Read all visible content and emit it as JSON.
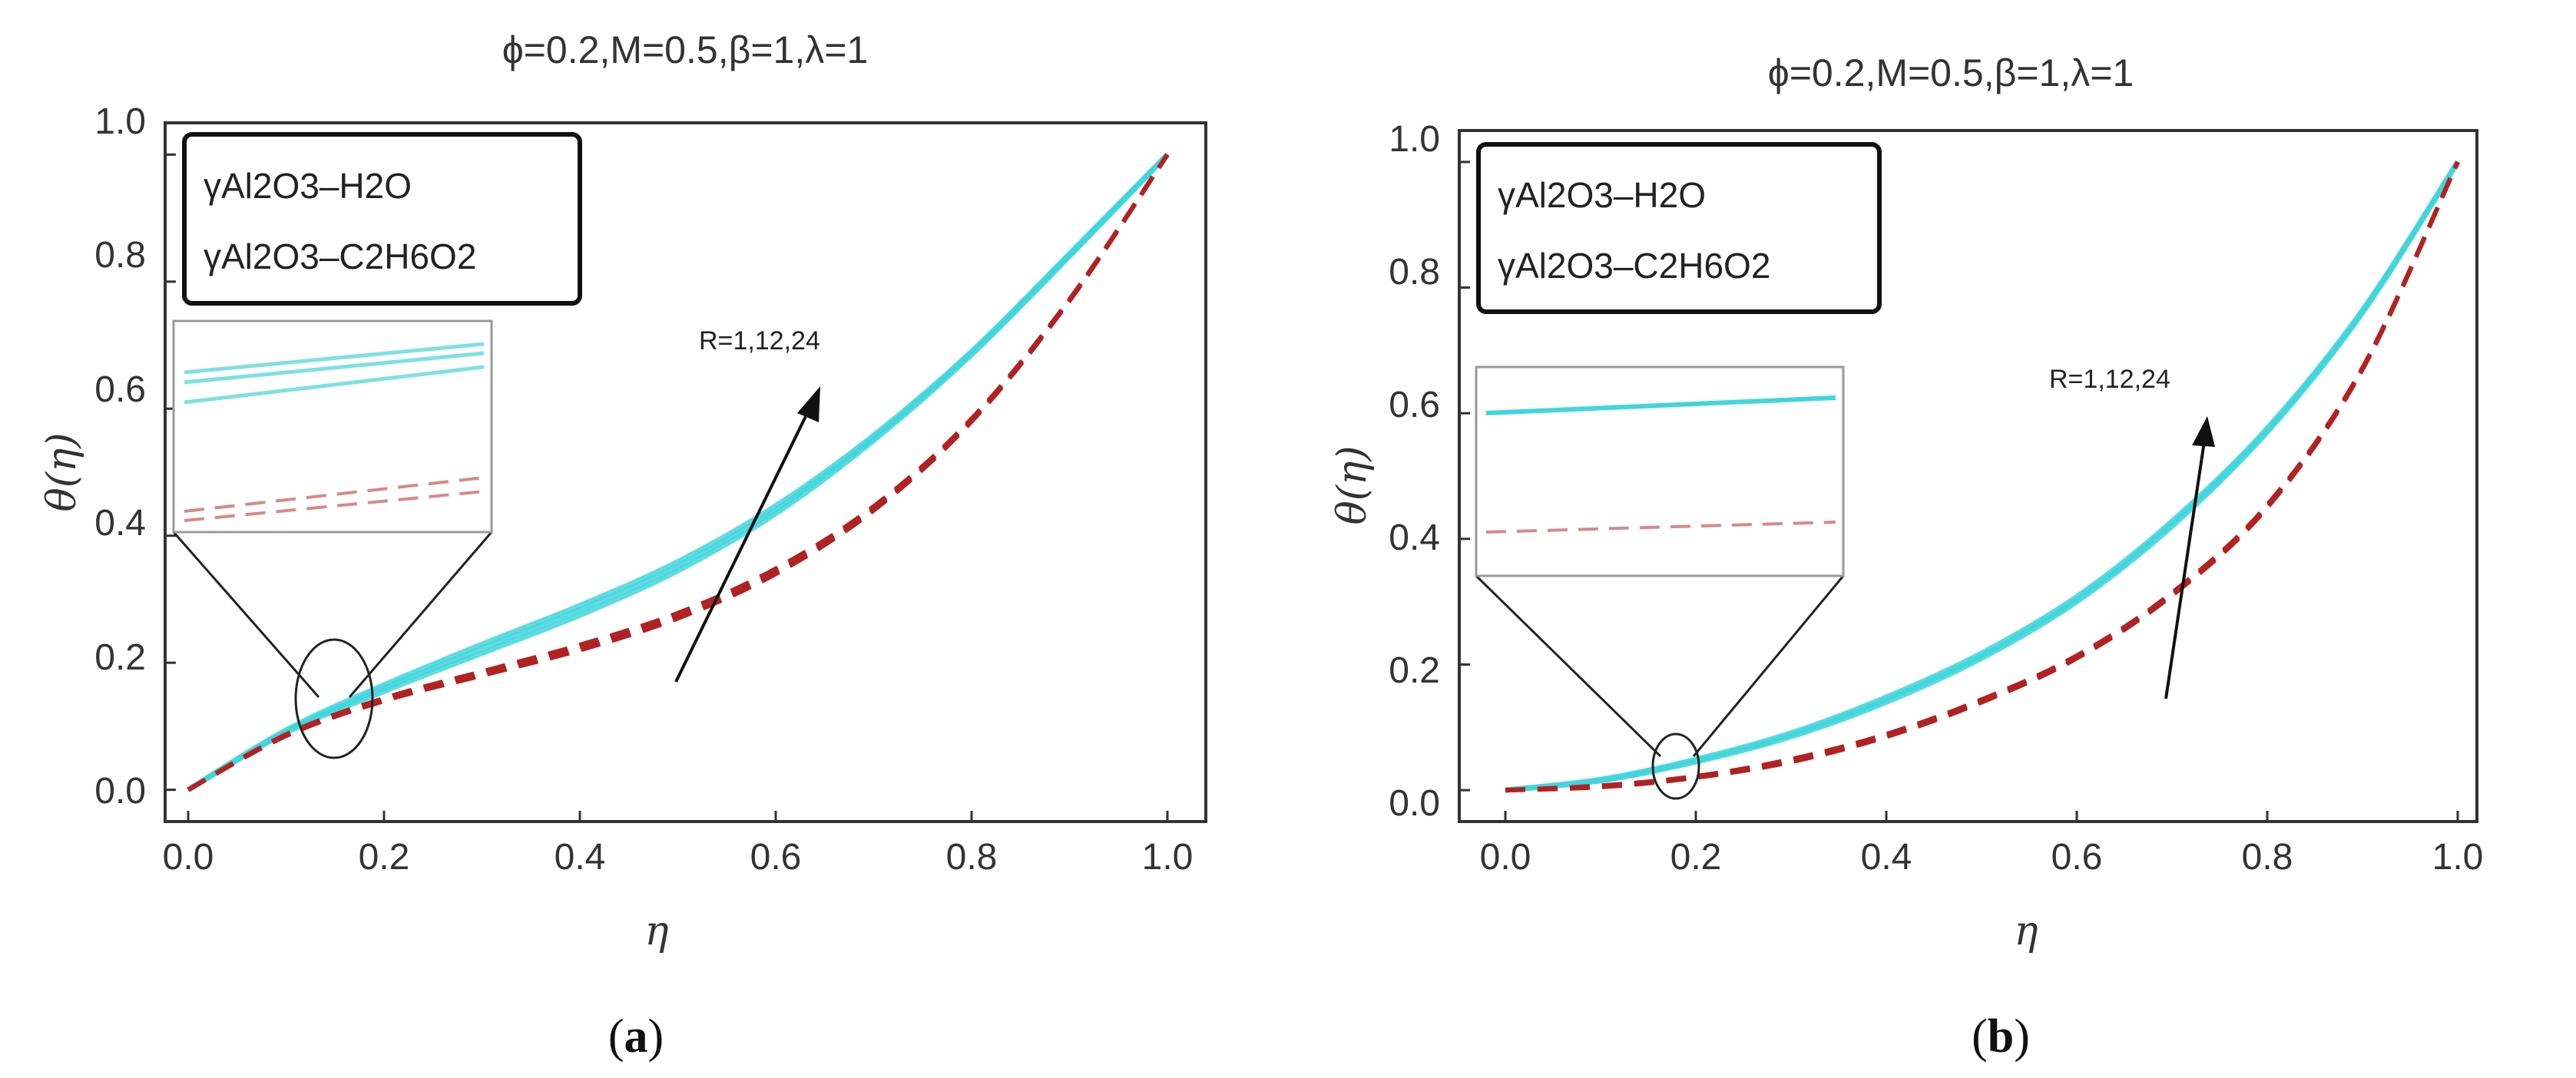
{
  "chart_data": [
    {
      "type": "line",
      "title": "ϕ=0.2,M=0.5,β=1,λ=1",
      "xlabel": "η",
      "ylabel": "θ(η)",
      "xlim": [
        0,
        1
      ],
      "ylim": [
        -0.05,
        1.05
      ],
      "xticks": [
        "0.0",
        "0.2",
        "0.4",
        "0.6",
        "0.8",
        "1.0"
      ],
      "yticks": [
        "0.0",
        "0.2",
        "0.4",
        "0.6",
        "0.8",
        "1.0"
      ],
      "legend": [
        "γAl2O3–H2O",
        "γAl2O3–C2H6O2"
      ],
      "legend_position": "top-left",
      "annotation": "R=1,12,24",
      "panel_label": "(a)",
      "series": [
        {
          "name": "γAl2O3–H2O (R=1)",
          "style": "cyan-solid",
          "x": [
            0,
            0.1,
            0.2,
            0.3,
            0.4,
            0.5,
            0.6,
            0.7,
            0.8,
            0.9,
            1.0
          ],
          "y": [
            0,
            0.09,
            0.155,
            0.215,
            0.275,
            0.345,
            0.435,
            0.55,
            0.685,
            0.84,
            1.0
          ]
        },
        {
          "name": "γAl2O3–H2O (R=12)",
          "style": "cyan-solid",
          "x": [
            0,
            0.1,
            0.2,
            0.3,
            0.4,
            0.5,
            0.6,
            0.7,
            0.8,
            0.9,
            1.0
          ],
          "y": [
            0,
            0.092,
            0.16,
            0.222,
            0.283,
            0.352,
            0.441,
            0.554,
            0.688,
            0.842,
            1.0
          ]
        },
        {
          "name": "γAl2O3–H2O (R=24)",
          "style": "cyan-solid",
          "x": [
            0,
            0.1,
            0.2,
            0.3,
            0.4,
            0.5,
            0.6,
            0.7,
            0.8,
            0.9,
            1.0
          ],
          "y": [
            0,
            0.094,
            0.165,
            0.229,
            0.29,
            0.359,
            0.447,
            0.558,
            0.69,
            0.844,
            1.0
          ]
        },
        {
          "name": "γAl2O3–C2H6O2 (R=1)",
          "style": "red-dashed",
          "x": [
            0,
            0.1,
            0.2,
            0.3,
            0.4,
            0.5,
            0.6,
            0.7,
            0.8,
            0.9,
            1.0
          ],
          "y": [
            0,
            0.085,
            0.14,
            0.18,
            0.22,
            0.27,
            0.34,
            0.44,
            0.58,
            0.77,
            1.0
          ]
        },
        {
          "name": "γAl2O3–C2H6O2 (R=12)",
          "style": "red-dashed",
          "x": [
            0,
            0.1,
            0.2,
            0.3,
            0.4,
            0.5,
            0.6,
            0.7,
            0.8,
            0.9,
            1.0
          ],
          "y": [
            0,
            0.086,
            0.142,
            0.183,
            0.224,
            0.274,
            0.344,
            0.443,
            0.582,
            0.771,
            1.0
          ]
        },
        {
          "name": "γAl2O3–C2H6O2 (R=24)",
          "style": "red-dashed",
          "x": [
            0,
            0.1,
            0.2,
            0.3,
            0.4,
            0.5,
            0.6,
            0.7,
            0.8,
            0.9,
            1.0
          ],
          "y": [
            0,
            0.087,
            0.144,
            0.186,
            0.228,
            0.278,
            0.348,
            0.446,
            0.584,
            0.772,
            1.0
          ]
        }
      ]
    },
    {
      "type": "line",
      "title": "ϕ=0.2,M=0.5,β=1,λ=1",
      "xlabel": "η",
      "ylabel": "θ(η)",
      "xlim": [
        0,
        1
      ],
      "ylim": [
        -0.05,
        1.05
      ],
      "xticks": [
        "0.0",
        "0.2",
        "0.4",
        "0.6",
        "0.8",
        "1.0"
      ],
      "yticks": [
        "0.0",
        "0.2",
        "0.4",
        "0.6",
        "0.8",
        "1.0"
      ],
      "legend": [
        "γAl2O3–H2O",
        "γAl2O3–C2H6O2"
      ],
      "legend_position": "top-left",
      "annotation": "R=1,12,24",
      "panel_label": "(b)",
      "series": [
        {
          "name": "γAl2O3–H2O (R=1)",
          "style": "cyan-solid",
          "x": [
            0,
            0.1,
            0.2,
            0.3,
            0.4,
            0.5,
            0.6,
            0.7,
            0.8,
            0.9,
            1.0
          ],
          "y": [
            0,
            0.015,
            0.045,
            0.085,
            0.14,
            0.21,
            0.3,
            0.42,
            0.57,
            0.76,
            1.0
          ]
        },
        {
          "name": "γAl2O3–H2O (R=12)",
          "style": "cyan-solid",
          "x": [
            0,
            0.1,
            0.2,
            0.3,
            0.4,
            0.5,
            0.6,
            0.7,
            0.8,
            0.9,
            1.0
          ],
          "y": [
            0,
            0.016,
            0.047,
            0.088,
            0.144,
            0.214,
            0.304,
            0.424,
            0.573,
            0.762,
            1.0
          ]
        },
        {
          "name": "γAl2O3–H2O (R=24)",
          "style": "cyan-solid",
          "x": [
            0,
            0.1,
            0.2,
            0.3,
            0.4,
            0.5,
            0.6,
            0.7,
            0.8,
            0.9,
            1.0
          ],
          "y": [
            0,
            0.017,
            0.049,
            0.091,
            0.148,
            0.218,
            0.308,
            0.428,
            0.576,
            0.764,
            1.0
          ]
        },
        {
          "name": "γAl2O3–C2H6O2 (R=1)",
          "style": "red-dashed",
          "x": [
            0,
            0.1,
            0.2,
            0.3,
            0.4,
            0.5,
            0.6,
            0.7,
            0.8,
            0.9,
            1.0
          ],
          "y": [
            0,
            0.005,
            0.02,
            0.045,
            0.085,
            0.14,
            0.21,
            0.31,
            0.45,
            0.67,
            1.0
          ]
        },
        {
          "name": "γAl2O3–C2H6O2 (R=12)",
          "style": "red-dashed",
          "x": [
            0,
            0.1,
            0.2,
            0.3,
            0.4,
            0.5,
            0.6,
            0.7,
            0.8,
            0.9,
            1.0
          ],
          "y": [
            0,
            0.006,
            0.021,
            0.047,
            0.087,
            0.142,
            0.212,
            0.312,
            0.452,
            0.671,
            1.0
          ]
        },
        {
          "name": "γAl2O3–C2H6O2 (R=24)",
          "style": "red-dashed",
          "x": [
            0,
            0.1,
            0.2,
            0.3,
            0.4,
            0.5,
            0.6,
            0.7,
            0.8,
            0.9,
            1.0
          ],
          "y": [
            0,
            0.007,
            0.022,
            0.049,
            0.089,
            0.144,
            0.214,
            0.314,
            0.454,
            0.672,
            1.0
          ]
        }
      ]
    }
  ],
  "colors": {
    "water": "#40d6dc",
    "glycol": "#b22222",
    "axis": "#333333"
  }
}
